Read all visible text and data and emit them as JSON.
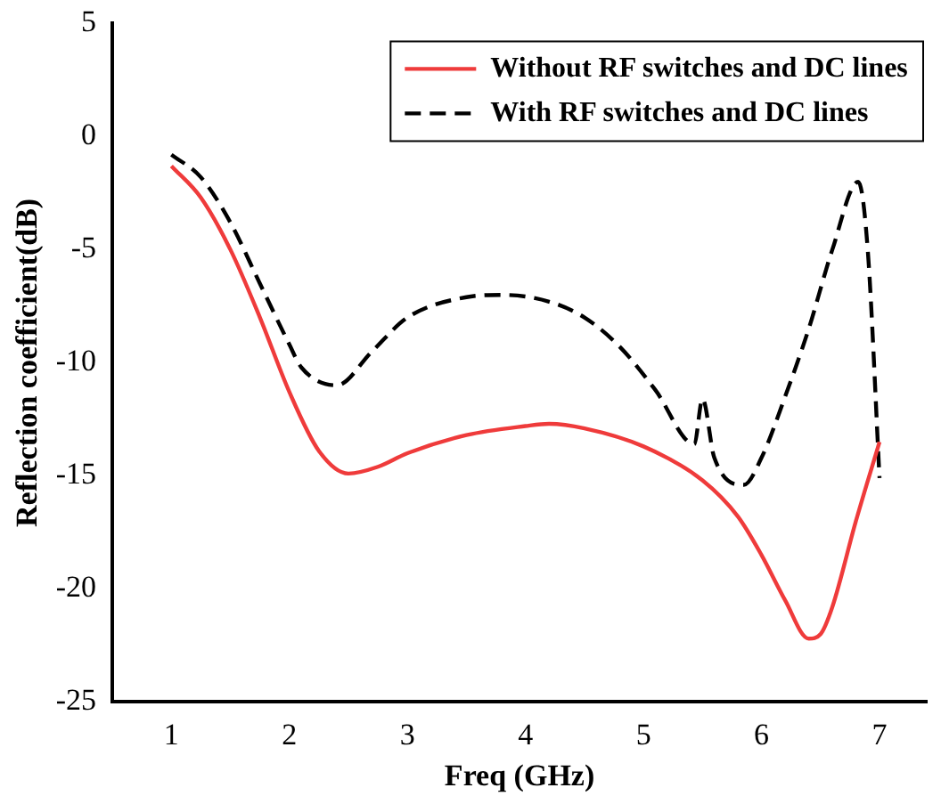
{
  "chart_data": {
    "type": "line",
    "xlabel": "Freq (GHz)",
    "ylabel": "Reflection coefficient(dB)",
    "xlim": [
      0.5,
      7.4
    ],
    "xticks": [
      1,
      2,
      3,
      4,
      5,
      6,
      7
    ],
    "ylim": [
      -25,
      5
    ],
    "yticks": [
      -25,
      -20,
      -15,
      -10,
      -5,
      0,
      5
    ],
    "grid": false,
    "legend": "top right",
    "marker": "none",
    "series": [
      {
        "name": "Without RF switches and DC lines",
        "color": "#ef3b3b",
        "line_style": "solid",
        "x": [
          1.0,
          1.25,
          1.5,
          1.75,
          2.0,
          2.25,
          2.5,
          2.75,
          3.0,
          3.5,
          4.0,
          4.2,
          4.5,
          5.0,
          5.5,
          5.8,
          6.0,
          6.2,
          6.4,
          6.5,
          6.6,
          6.8,
          7.0
        ],
        "values": [
          -1.3,
          -2.7,
          -5.0,
          -8.0,
          -11.3,
          -13.9,
          -14.9,
          -14.6,
          -14.0,
          -13.2,
          -12.8,
          -12.7,
          -12.9,
          -13.7,
          -15.2,
          -16.8,
          -18.5,
          -20.5,
          -22.2,
          -22.0,
          -20.8,
          -17.0,
          -13.5
        ]
      },
      {
        "name": "With RF switches and DC lines",
        "color": "#000000",
        "line_style": "dashed",
        "x": [
          1.0,
          1.25,
          1.5,
          1.75,
          2.0,
          2.1,
          2.4,
          2.7,
          3.0,
          3.5,
          3.8,
          4.2,
          4.5,
          4.8,
          5.1,
          5.43,
          5.5,
          5.6,
          5.85,
          6.0,
          6.2,
          6.4,
          6.6,
          6.82,
          6.9,
          7.0
        ],
        "values": [
          -0.8,
          -1.8,
          -3.8,
          -6.5,
          -9.2,
          -10.2,
          -11.0,
          -9.5,
          -8.0,
          -7.1,
          -7.0,
          -7.3,
          -8.0,
          -9.3,
          -11.2,
          -13.6,
          -11.6,
          -14.2,
          -15.4,
          -14.2,
          -11.5,
          -8.5,
          -5.0,
          -2.0,
          -5.0,
          -15.1
        ]
      }
    ]
  }
}
